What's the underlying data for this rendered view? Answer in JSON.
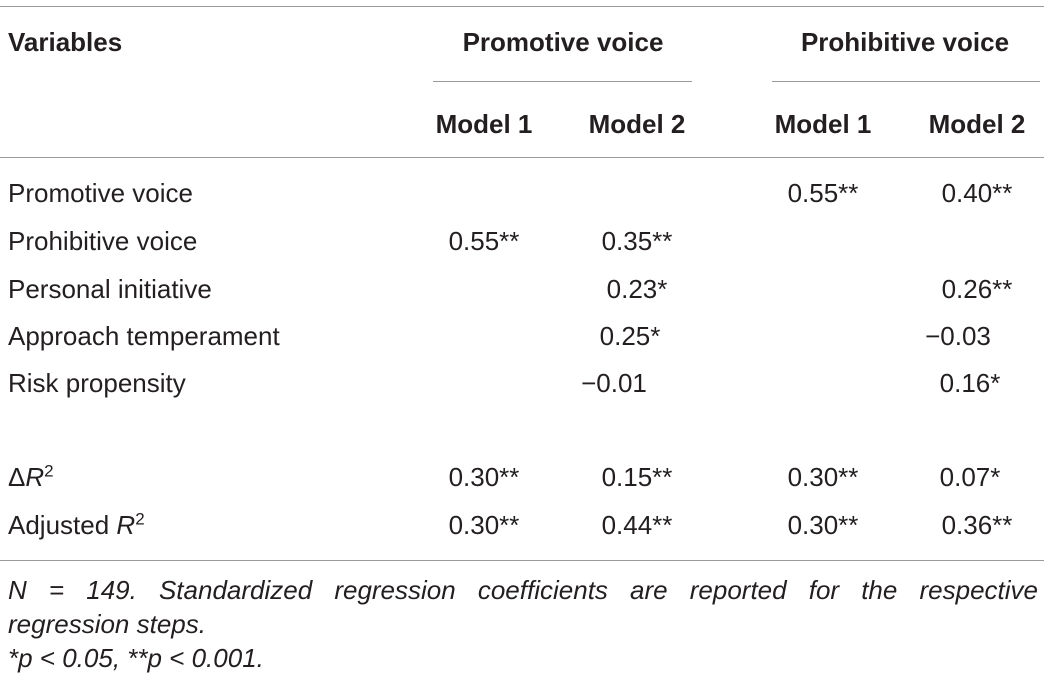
{
  "headers": {
    "variables": "Variables",
    "promotive_group": "Promotive voice",
    "prohibitive_group": "Prohibitive voice",
    "promotive_model1": "Model 1",
    "promotive_model2": "Model 2",
    "prohibitive_model1": "Model 1",
    "prohibitive_model2": "Model 2"
  },
  "rows": [
    {
      "label": "Promotive voice",
      "values": [
        "",
        "",
        "0.55**",
        "0.40**"
      ]
    },
    {
      "label": "Prohibitive voice",
      "values": [
        "0.55**",
        "0.35**",
        "",
        ""
      ]
    },
    {
      "label": "Personal initiative",
      "values": [
        "",
        "0.23*",
        "",
        "0.26**"
      ]
    },
    {
      "label": "Approach temperament",
      "values": [
        "",
        "0.25*",
        "",
        "−0.03"
      ]
    },
    {
      "label": "Risk propensity",
      "values": [
        "",
        "−0.01",
        "",
        "0.16*"
      ]
    }
  ],
  "summary_rows": [
    {
      "label_prefix": "Δ",
      "label_var": "R",
      "label_sup": "2",
      "values": [
        "0.30**",
        "0.15**",
        "0.30**",
        "0.07*"
      ]
    },
    {
      "label_prefix": "Adjusted ",
      "label_var": "R",
      "label_sup": "2",
      "values": [
        "0.30**",
        "0.44**",
        "0.30**",
        "0.36**"
      ]
    }
  ],
  "note": {
    "line1": "N = 149. Standardized regression coefficients are reported for the respective",
    "line2": "regression steps.",
    "line3": "*p < 0.05, **p < 0.001."
  }
}
